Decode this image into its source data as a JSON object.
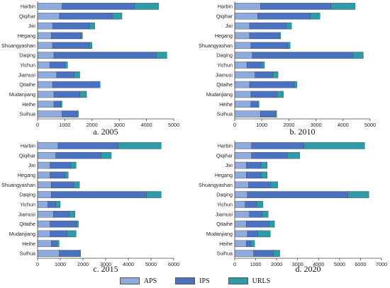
{
  "colors": {
    "APS": "#8faadc",
    "IPS": "#4a72c0",
    "URLS": "#2f9aa8"
  },
  "legend": {
    "items": [
      "APS",
      "IPS",
      "URLS"
    ]
  },
  "chart_data": [
    {
      "type": "bar",
      "orientation": "horizontal",
      "stacked": true,
      "title": "a. 2005",
      "categories": [
        "Harbin",
        "Qiqihar",
        "Jixi",
        "Hegang",
        "Shuangyashan",
        "Daqing",
        "Yichun",
        "Jiamusi",
        "Qitaihe",
        "Mudanjiang",
        "Heihe",
        "Suihua"
      ],
      "series": [
        {
          "name": "APS",
          "values": [
            900,
            800,
            550,
            500,
            550,
            600,
            450,
            700,
            550,
            600,
            600,
            900
          ]
        },
        {
          "name": "IPS",
          "values": [
            2650,
            1950,
            1350,
            1100,
            1350,
            3750,
            550,
            650,
            1700,
            950,
            250,
            550
          ]
        },
        {
          "name": "URLS",
          "values": [
            900,
            350,
            200,
            50,
            100,
            400,
            100,
            200,
            50,
            250,
            50,
            50
          ]
        }
      ],
      "xlim": [
        0,
        5000
      ],
      "xticks": [
        0,
        1000,
        2000,
        3000,
        4000,
        5000
      ]
    },
    {
      "type": "bar",
      "orientation": "horizontal",
      "stacked": true,
      "title": "b. 2010",
      "categories": [
        "Harbin",
        "Qiqihar",
        "Jixi",
        "Hegang",
        "Shuangyashan",
        "Daqing",
        "Yichun",
        "Jiamusi",
        "Qitaihe",
        "Mudanjiang",
        "Heihe",
        "Suihua"
      ],
      "series": [
        {
          "name": "APS",
          "values": [
            950,
            850,
            550,
            550,
            600,
            650,
            450,
            750,
            550,
            600,
            600,
            950
          ]
        },
        {
          "name": "IPS",
          "values": [
            2600,
            1950,
            1350,
            1100,
            1350,
            3700,
            550,
            650,
            1650,
            950,
            250,
            550
          ]
        },
        {
          "name": "URLS",
          "values": [
            900,
            350,
            200,
            50,
            100,
            400,
            100,
            200,
            100,
            250,
            50,
            50
          ]
        }
      ],
      "xlim": [
        0,
        5000
      ],
      "xticks": [
        0,
        1000,
        2000,
        3000,
        4000,
        5000
      ]
    },
    {
      "type": "bar",
      "orientation": "horizontal",
      "stacked": true,
      "title": "c. 2015",
      "categories": [
        "Harbin",
        "Qiqihar",
        "Jixi",
        "Hegang",
        "Shuangyashan",
        "Daqing",
        "Yichun",
        "Jiamusi",
        "Qitaihe",
        "Mudanjiang",
        "Heihe",
        "Suihua"
      ],
      "series": [
        {
          "name": "APS",
          "values": [
            900,
            800,
            550,
            550,
            600,
            600,
            450,
            700,
            550,
            550,
            600,
            950
          ]
        },
        {
          "name": "IPS",
          "values": [
            2650,
            2000,
            900,
            650,
            1000,
            4200,
            350,
            700,
            1150,
            750,
            250,
            900
          ]
        },
        {
          "name": "URLS",
          "values": [
            1900,
            450,
            250,
            150,
            250,
            650,
            200,
            250,
            100,
            400,
            100,
            50
          ]
        }
      ],
      "xlim": [
        0,
        6000
      ],
      "xticks": [
        0,
        1000,
        2000,
        3000,
        4000,
        5000,
        6000
      ]
    },
    {
      "type": "bar",
      "orientation": "horizontal",
      "stacked": true,
      "title": "d. 2020",
      "categories": [
        "Harbin",
        "Qiqihar",
        "Jixi",
        "Hegang",
        "Shuangyashan",
        "Daqing",
        "Yichun",
        "Jiamusi",
        "Qitaihe",
        "Mudanjiang",
        "Heihe",
        "Suihua"
      ],
      "series": [
        {
          "name": "APS",
          "values": [
            800,
            800,
            550,
            550,
            650,
            600,
            500,
            700,
            550,
            600,
            550,
            900
          ]
        },
        {
          "name": "IPS",
          "values": [
            2500,
            1700,
            700,
            700,
            1050,
            4800,
            550,
            600,
            1100,
            500,
            200,
            950
          ]
        },
        {
          "name": "URLS",
          "values": [
            2900,
            600,
            300,
            300,
            350,
            1000,
            300,
            300,
            250,
            600,
            200,
            300
          ]
        }
      ],
      "xlim": [
        0,
        7000
      ],
      "xticks": [
        0,
        1000,
        2000,
        3000,
        4000,
        5000,
        6000,
        7000
      ]
    }
  ]
}
